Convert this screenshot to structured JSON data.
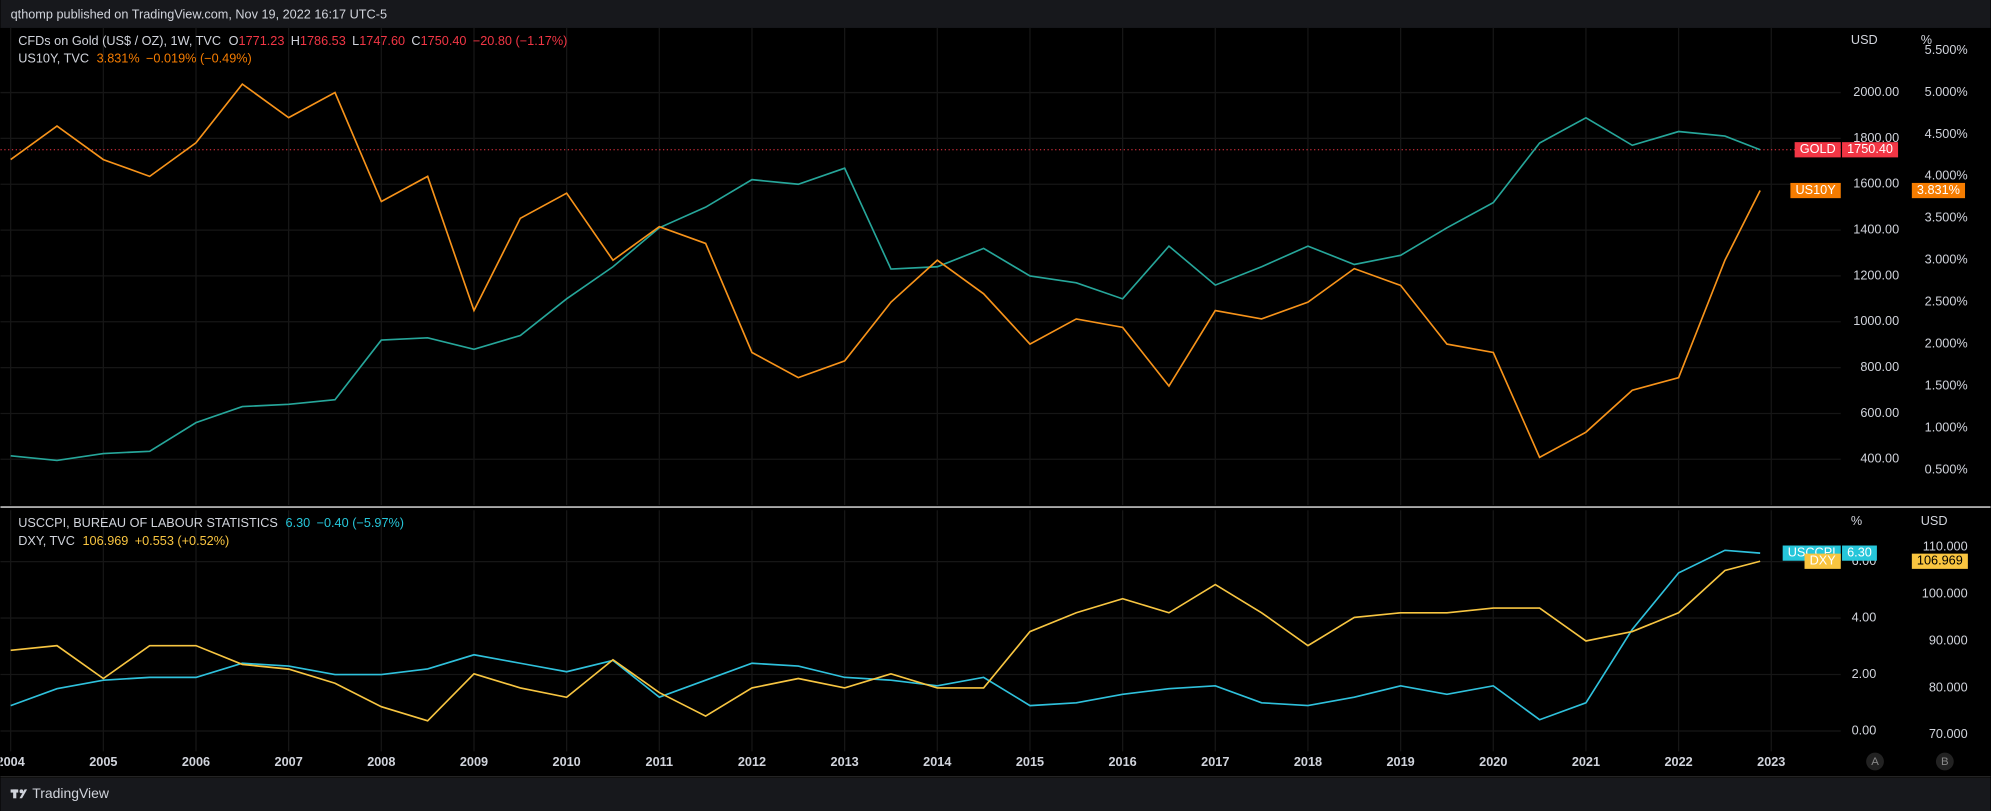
{
  "header": "qthomp published on TradingView.com, Nov 19, 2022 16:17 UTC-5",
  "footer": "TradingView",
  "scale_buttons": [
    "A",
    "B"
  ],
  "chart_data": [
    {
      "type": "line",
      "x": [
        2004,
        2004.5,
        2005,
        2005.5,
        2006,
        2006.5,
        2007,
        2007.5,
        2008,
        2008.5,
        2009,
        2009.5,
        2010,
        2010.5,
        2011,
        2011.5,
        2012,
        2012.5,
        2013,
        2013.5,
        2014,
        2014.5,
        2015,
        2015.5,
        2016,
        2016.5,
        2017,
        2017.5,
        2018,
        2018.5,
        2019,
        2019.5,
        2020,
        2020.5,
        2021,
        2021.5,
        2022,
        2022.5,
        2022.88
      ],
      "xlim": [
        2003.89,
        2023.75
      ],
      "yaxis_label": "USD",
      "y2axis_label": "%",
      "ylim": [
        200,
        2282
      ],
      "yticks": [
        {
          "value": 400,
          "label": "400.00"
        },
        {
          "value": 600,
          "label": "600.00"
        },
        {
          "value": 800,
          "label": "800.00"
        },
        {
          "value": 1000,
          "label": "1000.00"
        },
        {
          "value": 1200,
          "label": "1200.00"
        },
        {
          "value": 1400,
          "label": "1400.00"
        },
        {
          "value": 1600,
          "label": "1600.00"
        },
        {
          "value": 1800,
          "label": "1800.00"
        },
        {
          "value": 2000,
          "label": "2000.00"
        }
      ],
      "y2lim": [
        0.08,
        5.77
      ],
      "y2ticks": [
        {
          "value": 0.5,
          "label": "0.500%"
        },
        {
          "value": 1,
          "label": "1.000%"
        },
        {
          "value": 1.5,
          "label": "1.500%"
        },
        {
          "value": 2,
          "label": "2.000%"
        },
        {
          "value": 2.5,
          "label": "2.500%"
        },
        {
          "value": 3,
          "label": "3.000%"
        },
        {
          "value": 3.5,
          "label": "3.500%"
        },
        {
          "value": 4,
          "label": "4.000%"
        },
        {
          "value": 4.5,
          "label": "4.500%"
        },
        {
          "value": 5,
          "label": "5.000%"
        },
        {
          "value": 5.5,
          "label": "5.500%"
        }
      ],
      "grid": true,
      "series": [
        {
          "name": "GOLD",
          "color": "#26a69a",
          "tag_color": "#f23645",
          "price_line": true,
          "title": "CFDs on Gold (US$ / OZ), 1W, TVC",
          "ohlc": [
            {
              "key": "O",
              "label": "1771.23"
            },
            {
              "key": "H",
              "label": "1786.53"
            },
            {
              "key": "L",
              "label": "1747.60"
            },
            {
              "key": "C",
              "label": "1750.40"
            }
          ],
          "change": "−20.80 (−1.17%)",
          "values": [
            415,
            395,
            425,
            435,
            560,
            630,
            640,
            660,
            920,
            930,
            880,
            940,
            1100,
            1240,
            1410,
            1500,
            1620,
            1600,
            1670,
            1230,
            1240,
            1320,
            1200,
            1170,
            1100,
            1330,
            1160,
            1240,
            1330,
            1250,
            1290,
            1410,
            1520,
            1780,
            1890,
            1770,
            1830,
            1810,
            1750.4
          ]
        },
        {
          "name": "US10Y",
          "color": "#f7931a",
          "tag_color": "#f57c00",
          "axis": "y2",
          "title": "US10Y, TVC",
          "last_label": "3.831%",
          "change": "−0.019% (−0.49%)",
          "values": [
            4.2,
            4.6,
            4.2,
            4.0,
            4.4,
            5.1,
            4.7,
            5.0,
            3.7,
            4.0,
            2.4,
            3.5,
            3.8,
            3.0,
            3.4,
            3.2,
            1.9,
            1.6,
            1.8,
            2.5,
            3.0,
            2.6,
            2.0,
            2.3,
            2.2,
            1.5,
            2.4,
            2.3,
            2.5,
            2.9,
            2.7,
            2.0,
            1.9,
            0.65,
            0.95,
            1.45,
            1.6,
            3.0,
            3.831
          ]
        }
      ]
    },
    {
      "type": "line",
      "x": [
        2004,
        2004.5,
        2005,
        2005.5,
        2006,
        2006.5,
        2007,
        2007.5,
        2008,
        2008.5,
        2009,
        2009.5,
        2010,
        2010.5,
        2011,
        2011.5,
        2012,
        2012.5,
        2013,
        2013.5,
        2014,
        2014.5,
        2015,
        2015.5,
        2016,
        2016.5,
        2017,
        2017.5,
        2018,
        2018.5,
        2019,
        2019.5,
        2020,
        2020.5,
        2021,
        2021.5,
        2022,
        2022.5,
        2022.88
      ],
      "xlim": [
        2003.89,
        2023.75
      ],
      "xticks": [
        2004,
        2005,
        2006,
        2007,
        2008,
        2009,
        2010,
        2011,
        2012,
        2013,
        2014,
        2015,
        2016,
        2017,
        2018,
        2019,
        2020,
        2021,
        2022,
        2023
      ],
      "yaxis_label": "%",
      "y2axis_label": "USD",
      "ylim": [
        -0.72,
        7.82
      ],
      "yticks": [
        {
          "value": 0,
          "label": "0.00"
        },
        {
          "value": 2,
          "label": "2.00"
        },
        {
          "value": 4,
          "label": "4.00"
        },
        {
          "value": 6,
          "label": "6.00"
        }
      ],
      "y2lim": [
        66.49,
        117.84
      ],
      "y2ticks": [
        {
          "value": 70,
          "label": "70.000"
        },
        {
          "value": 80,
          "label": "80.000"
        },
        {
          "value": 90,
          "label": "90.000"
        },
        {
          "value": 100,
          "label": "100.000"
        },
        {
          "value": 110,
          "label": "110.000"
        }
      ],
      "grid": true,
      "series": [
        {
          "name": "USCCPI",
          "color": "#2fc1dc",
          "tag_color": "#26c6da",
          "title": "USCCPI, BUREAU OF LABOUR STATISTICS",
          "last_label": "6.30",
          "change": "−0.40 (−5.97%)",
          "values": [
            0.9,
            1.5,
            1.8,
            1.9,
            1.9,
            2.4,
            2.3,
            2.0,
            2.0,
            2.2,
            2.7,
            2.4,
            2.1,
            2.5,
            1.2,
            1.8,
            2.4,
            2.3,
            1.9,
            1.8,
            1.6,
            1.9,
            0.9,
            1.0,
            1.3,
            1.5,
            1.6,
            1.0,
            0.9,
            1.2,
            1.6,
            1.3,
            1.6,
            0.4,
            1.0,
            3.6,
            5.6,
            6.4,
            6.3
          ]
        },
        {
          "name": "DXY",
          "color": "#f7c541",
          "tag_color": "#f9c540",
          "axis": "y2",
          "title": "DXY, TVC",
          "last_label": "106.969",
          "change": "+0.553 (+0.52%)",
          "values": [
            88,
            89,
            82,
            89,
            89,
            85,
            84,
            81,
            76,
            73,
            83,
            80,
            78,
            86,
            79,
            74,
            80,
            82,
            80,
            83,
            80,
            80,
            92,
            96,
            99,
            96,
            102,
            96,
            89,
            95,
            96,
            96,
            97,
            97,
            90,
            92,
            96,
            105,
            106.969
          ]
        }
      ]
    }
  ]
}
